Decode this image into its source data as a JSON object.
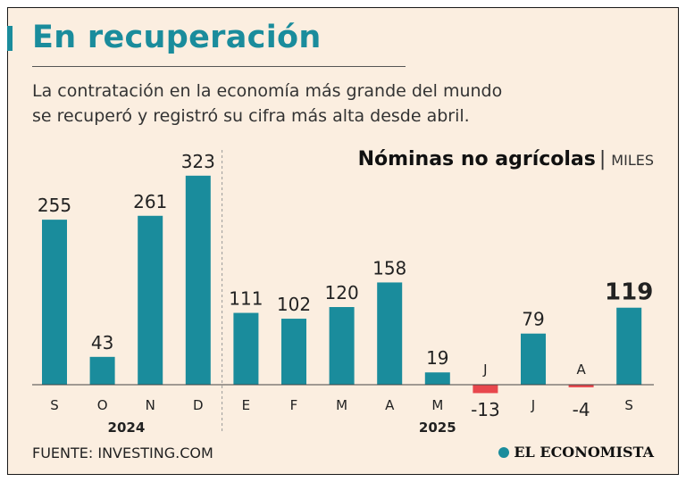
{
  "header": {
    "title": "En recuperación",
    "subtitle_line1": "La contratación en la economía más grande del mundo",
    "subtitle_line2": "se recuperó y registró su cifra más alta desde abril."
  },
  "chart_title": {
    "main": "Nóminas no agrícolas",
    "separator": "|",
    "units": "MILES"
  },
  "footer": {
    "source": "FUENTE: INVESTING.COM",
    "logo": "EL ECONOMISTA"
  },
  "colors": {
    "positive": "#1a8c9c",
    "negative": "#e8474d",
    "background": "#fbeee0"
  },
  "chart_data": {
    "type": "bar",
    "title": "Nóminas no agrícolas",
    "ylabel": "MILES",
    "categories": [
      "S",
      "O",
      "N",
      "D",
      "E",
      "F",
      "M",
      "A",
      "M",
      "J",
      "J",
      "A",
      "S"
    ],
    "values": [
      255,
      43,
      261,
      323,
      111,
      102,
      120,
      158,
      19,
      -13,
      79,
      -4,
      119
    ],
    "value_labels": [
      "255",
      "43",
      "261",
      "323",
      "111",
      "102",
      "120",
      "158",
      "19",
      "-13",
      "79",
      "-4",
      "119"
    ],
    "highlight_index": 12,
    "year_groups": [
      {
        "label": "2024",
        "start": 0,
        "end": 3
      },
      {
        "label": "2025",
        "start": 4,
        "end": 12
      }
    ]
  }
}
